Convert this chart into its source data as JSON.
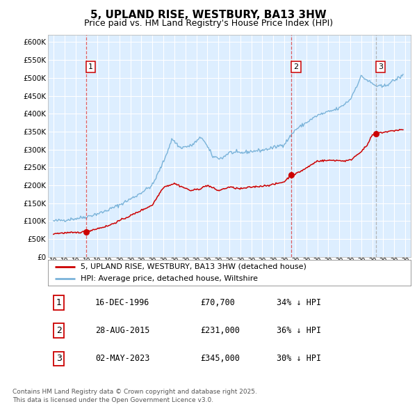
{
  "title": "5, UPLAND RISE, WESTBURY, BA13 3HW",
  "subtitle": "Price paid vs. HM Land Registry's House Price Index (HPI)",
  "title_fontsize": 11,
  "subtitle_fontsize": 9,
  "xlim_start": 1993.5,
  "xlim_end": 2026.5,
  "ylim_min": 0,
  "ylim_max": 620000,
  "yticks": [
    0,
    50000,
    100000,
    150000,
    200000,
    250000,
    300000,
    350000,
    400000,
    450000,
    500000,
    550000,
    600000
  ],
  "plot_bg_color": "#ddeeff",
  "grid_color": "#ffffff",
  "hpi_line_color": "#7ab3d9",
  "price_line_color": "#cc0000",
  "marker_color": "#cc0000",
  "transactions": [
    {
      "label": "1",
      "date_year": 1996.96,
      "price": 70700,
      "vline_color": "#dd4444"
    },
    {
      "label": "2",
      "date_year": 2015.65,
      "price": 231000,
      "vline_color": "#dd4444"
    },
    {
      "label": "3",
      "date_year": 2023.33,
      "price": 345000,
      "vline_color": "#aaaaaa"
    }
  ],
  "legend_entries": [
    {
      "label": "5, UPLAND RISE, WESTBURY, BA13 3HW (detached house)",
      "color": "#cc0000"
    },
    {
      "label": "HPI: Average price, detached house, Wiltshire",
      "color": "#7ab3d9"
    }
  ],
  "table_rows": [
    {
      "num": "1",
      "date": "16-DEC-1996",
      "price": "£70,700",
      "hpi": "34% ↓ HPI"
    },
    {
      "num": "2",
      "date": "28-AUG-2015",
      "price": "£231,000",
      "hpi": "36% ↓ HPI"
    },
    {
      "num": "3",
      "date": "02-MAY-2023",
      "price": "£345,000",
      "hpi": "30% ↓ HPI"
    }
  ],
  "footer": "Contains HM Land Registry data © Crown copyright and database right 2025.\nThis data is licensed under the Open Government Licence v3.0."
}
